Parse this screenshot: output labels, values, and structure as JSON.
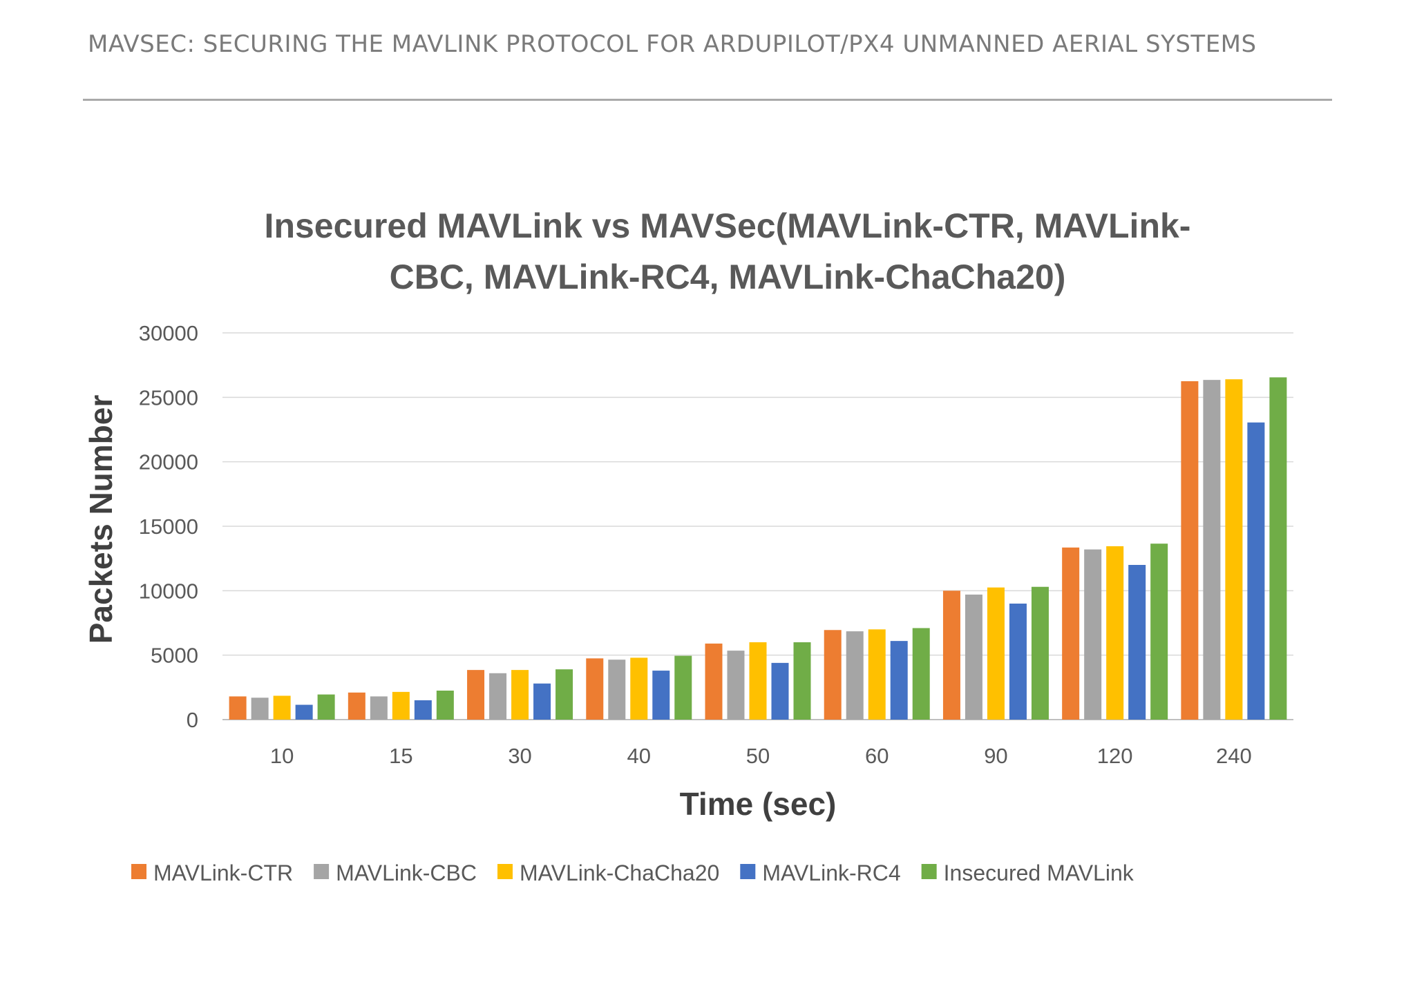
{
  "page": {
    "header_title": "MAVSEC: SECURING THE MAVLINK PROTOCOL FOR ARDUPILOT/PX4 UNMANNED AERIAL SYSTEMS"
  },
  "chart_data": {
    "type": "bar",
    "title_line1": "Insecured MAVLink vs MAVSec(MAVLink-CTR, MAVLink-",
    "title_line2": "CBC, MAVLink-RC4, MAVLink-ChaCha20)",
    "xlabel": "Time (sec)",
    "ylabel": "Packets Number",
    "ylim": [
      0,
      30000
    ],
    "yticks": [
      0,
      5000,
      10000,
      15000,
      20000,
      25000,
      30000
    ],
    "grid": true,
    "legend_position": "bottom",
    "categories": [
      "10",
      "15",
      "30",
      "40",
      "50",
      "60",
      "90",
      "120",
      "240"
    ],
    "series": [
      {
        "name": "MAVLink-CTR",
        "color": "#ed7d31",
        "values": [
          1800,
          2100,
          3850,
          4750,
          5900,
          6950,
          10000,
          13350,
          26250
        ]
      },
      {
        "name": "MAVLink-CBC",
        "color": "#a5a5a5",
        "values": [
          1700,
          1800,
          3600,
          4650,
          5350,
          6850,
          9700,
          13200,
          26350
        ]
      },
      {
        "name": "MAVLink-ChaCha20",
        "color": "#ffc000",
        "values": [
          1850,
          2150,
          3850,
          4800,
          6000,
          7000,
          10250,
          13450,
          26400
        ]
      },
      {
        "name": "MAVLink-RC4",
        "color": "#4472c4",
        "values": [
          1150,
          1500,
          2800,
          3800,
          4400,
          6100,
          9000,
          12000,
          23050
        ]
      },
      {
        "name": "Insecured MAVLink",
        "color": "#70ad47",
        "values": [
          1950,
          2250,
          3900,
          4950,
          6000,
          7100,
          10300,
          13650,
          26550
        ]
      }
    ]
  }
}
